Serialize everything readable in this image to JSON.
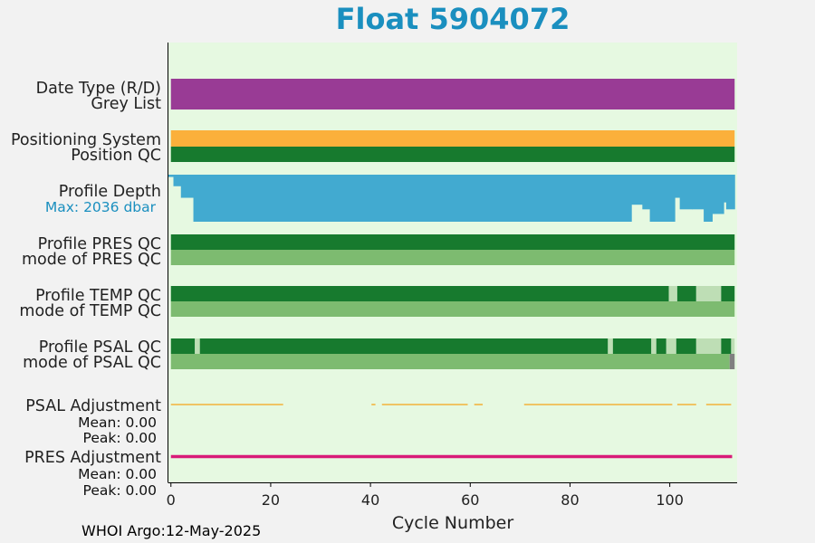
{
  "title": "Float 5904072",
  "footer": "WHOI Argo:12-May-2025",
  "colors": {
    "panel_bg": "#e6f9e1",
    "title": "#1a8fbf",
    "purple": "#993b95",
    "orange": "#fbb03b",
    "dark_green": "#177a2e",
    "mid_green": "#7dbb70",
    "light_green": "#bedeb5",
    "blue": "#42aad0",
    "grey": "#808080",
    "pres_adj": "#d81b78",
    "psal_adj": "#f5a51b"
  },
  "chart_data": {
    "type": "table",
    "xlabel": "Cycle Number",
    "xlim": [
      -0.5,
      113.5
    ],
    "xticks": [
      0,
      20,
      40,
      60,
      80,
      100
    ],
    "rows": [
      {
        "label": "Date Type (R/D)",
        "segments": [
          {
            "start": 0,
            "end": 113,
            "status": "purple"
          }
        ]
      },
      {
        "label": "Grey List",
        "segments": [
          {
            "start": 0,
            "end": 113,
            "status": "purple"
          }
        ]
      },
      {
        "label": "Positioning System",
        "segments": [
          {
            "start": 0,
            "end": 113,
            "status": "orange"
          }
        ]
      },
      {
        "label": "Position QC",
        "segments": [
          {
            "start": 0,
            "end": 113,
            "status": "dark_green"
          }
        ]
      },
      {
        "label": "Profile PRES QC",
        "segments": [
          {
            "start": 0,
            "end": 113,
            "status": "dark_green"
          }
        ]
      },
      {
        "label": "mode of PRES QC",
        "segments": [
          {
            "start": 0,
            "end": 113,
            "status": "mid_green"
          }
        ]
      },
      {
        "label": "Profile TEMP QC",
        "segments": [
          {
            "start": 0,
            "end": 99.8,
            "status": "dark_green"
          },
          {
            "start": 99.8,
            "end": 101.5,
            "status": "light_green"
          },
          {
            "start": 101.5,
            "end": 105.3,
            "status": "dark_green"
          },
          {
            "start": 105.3,
            "end": 110.3,
            "status": "light_green"
          },
          {
            "start": 110.3,
            "end": 113,
            "status": "dark_green"
          }
        ]
      },
      {
        "label": "mode of TEMP QC",
        "segments": [
          {
            "start": 0,
            "end": 113,
            "status": "mid_green"
          }
        ]
      },
      {
        "label": "Profile PSAL QC",
        "segments": [
          {
            "start": 0,
            "end": 4.8,
            "status": "dark_green"
          },
          {
            "start": 4.8,
            "end": 5.8,
            "status": "light_green"
          },
          {
            "start": 5.8,
            "end": 87.6,
            "status": "dark_green"
          },
          {
            "start": 87.6,
            "end": 88.6,
            "status": "light_green"
          },
          {
            "start": 88.6,
            "end": 96.3,
            "status": "dark_green"
          },
          {
            "start": 96.3,
            "end": 97.3,
            "status": "light_green"
          },
          {
            "start": 97.3,
            "end": 99.3,
            "status": "dark_green"
          },
          {
            "start": 99.3,
            "end": 101.3,
            "status": "light_green"
          },
          {
            "start": 101.3,
            "end": 105.3,
            "status": "dark_green"
          },
          {
            "start": 105.3,
            "end": 110.3,
            "status": "light_green"
          },
          {
            "start": 110.3,
            "end": 112.3,
            "status": "dark_green"
          },
          {
            "start": 112.3,
            "end": 113,
            "status": "light_green"
          }
        ]
      },
      {
        "label": "mode of PSAL QC",
        "segments": [
          {
            "start": 0,
            "end": 112,
            "status": "mid_green"
          },
          {
            "start": 112,
            "end": 113,
            "status": "grey"
          }
        ]
      }
    ],
    "profile_depth": {
      "label": "Profile Depth",
      "max_label": "Max: 2036 dbar",
      "max_dbar": 2036,
      "steps": [
        {
          "start": -0.5,
          "end": 0.5,
          "depth": 100
        },
        {
          "start": 0.5,
          "end": 2.0,
          "depth": 500
        },
        {
          "start": 2.0,
          "end": 4.5,
          "depth": 1000
        },
        {
          "start": 4.5,
          "end": 92.3,
          "depth": 2036
        },
        {
          "start": 92.3,
          "end": 94.5,
          "depth": 1300
        },
        {
          "start": 94.5,
          "end": 96.0,
          "depth": 1500
        },
        {
          "start": 96.0,
          "end": 101.0,
          "depth": 2036
        },
        {
          "start": 101.0,
          "end": 102.0,
          "depth": 1000
        },
        {
          "start": 102.0,
          "end": 104.5,
          "depth": 1500
        },
        {
          "start": 104.5,
          "end": 106.8,
          "depth": 1500
        },
        {
          "start": 106.8,
          "end": 108.5,
          "depth": 2036
        },
        {
          "start": 108.5,
          "end": 110.8,
          "depth": 1700
        },
        {
          "start": 110.8,
          "end": 111.3,
          "depth": 1200
        },
        {
          "start": 111.3,
          "end": 113.0,
          "depth": 1500
        }
      ]
    },
    "psal_adjustment": {
      "label": "PSAL Adjustment",
      "mean_label": "Mean: 0.00",
      "peak_label": "Peak: 0.00",
      "segments": [
        [
          0,
          22.5
        ],
        [
          40.2,
          41.0
        ],
        [
          42.3,
          59.5
        ],
        [
          60.8,
          62.5
        ],
        [
          70.8,
          100.5
        ],
        [
          101.5,
          105.3
        ],
        [
          107.3,
          112.3
        ]
      ]
    },
    "pres_adjustment": {
      "label": "PRES Adjustment",
      "mean_label": "Mean: 0.00",
      "peak_label": "Peak: 0.00",
      "segments": [
        [
          0,
          112.5
        ]
      ]
    }
  }
}
